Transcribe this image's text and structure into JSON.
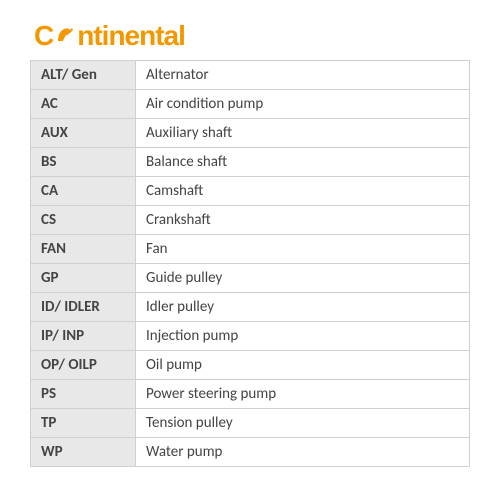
{
  "brand": {
    "name": "Continental",
    "c_part": "C",
    "rest": "ntinental",
    "color": "#f39800"
  },
  "table": {
    "columns": [
      "abbr",
      "desc"
    ],
    "column_widths": [
      "105px",
      "auto"
    ],
    "row_bg_abbr": "#e8e8e8",
    "row_bg_desc": "#ffffff",
    "border_color": "#d0d0d0",
    "font_size": 15,
    "rows": [
      {
        "abbr": "ALT/ Gen",
        "desc": "Alternator"
      },
      {
        "abbr": "AC",
        "desc": "Air condition pump"
      },
      {
        "abbr": "AUX",
        "desc": "Auxiliary shaft"
      },
      {
        "abbr": "BS",
        "desc": "Balance shaft"
      },
      {
        "abbr": "CA",
        "desc": "Camshaft"
      },
      {
        "abbr": "CS",
        "desc": "Crankshaft"
      },
      {
        "abbr": "FAN",
        "desc": "Fan"
      },
      {
        "abbr": "GP",
        "desc": "Guide pulley"
      },
      {
        "abbr": "ID/ IDLER",
        "desc": "Idler pulley"
      },
      {
        "abbr": "IP/ INP",
        "desc": "Injection pump"
      },
      {
        "abbr": "OP/ OILP",
        "desc": "Oil pump"
      },
      {
        "abbr": "PS",
        "desc": "Power steering pump"
      },
      {
        "abbr": "TP",
        "desc": "Tension pulley"
      },
      {
        "abbr": "WP",
        "desc": "Water pump"
      }
    ]
  }
}
